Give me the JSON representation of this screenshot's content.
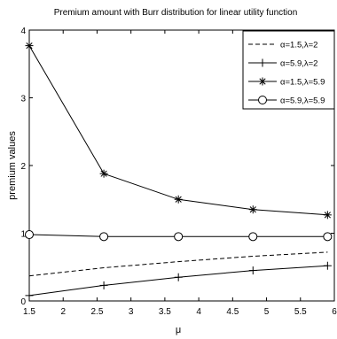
{
  "chart_data": {
    "type": "line",
    "title": "Premium amount with Burr  distribution for linear utility function",
    "xlabel": "μ",
    "ylabel": "premium values",
    "xlim": [
      1.5,
      6
    ],
    "ylim": [
      0,
      4
    ],
    "xticks": [
      "1.5",
      "2",
      "2.5",
      "3",
      "3.5",
      "4",
      "4.5",
      "5",
      "5.5",
      "6"
    ],
    "yticks": [
      "0",
      "1",
      "2",
      "3",
      "4"
    ],
    "grid": false,
    "legend_position": "top-right",
    "series": [
      {
        "name": "α=1.5,λ=2",
        "style": "dashed",
        "marker": "none",
        "x": [
          1.5,
          2.6,
          3.7,
          4.8,
          5.9
        ],
        "y": [
          0.37,
          0.49,
          0.58,
          0.66,
          0.72
        ]
      },
      {
        "name": "α=5.9,λ=2",
        "style": "solid",
        "marker": "plus",
        "x": [
          1.5,
          2.6,
          3.7,
          4.8,
          5.9
        ],
        "y": [
          0.08,
          0.23,
          0.35,
          0.45,
          0.52
        ]
      },
      {
        "name": "α=1.5,λ=5.9",
        "style": "solid",
        "marker": "asterisk",
        "x": [
          1.5,
          2.6,
          3.7,
          4.8,
          5.9
        ],
        "y": [
          3.77,
          1.88,
          1.5,
          1.35,
          1.27
        ]
      },
      {
        "name": "α=5.9,λ=5.9",
        "style": "solid",
        "marker": "circle",
        "x": [
          1.5,
          2.6,
          3.7,
          4.8,
          5.9
        ],
        "y": [
          0.98,
          0.95,
          0.95,
          0.95,
          0.95
        ]
      }
    ]
  }
}
